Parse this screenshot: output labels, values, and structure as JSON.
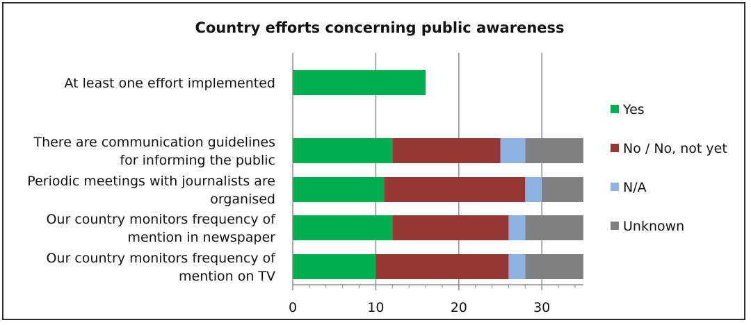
{
  "chart_data": {
    "type": "bar",
    "orientation": "horizontal",
    "stacked": true,
    "title": "Country efforts concerning public awareness",
    "xlabel": "",
    "ylabel": "",
    "xlim": [
      0,
      35
    ],
    "x_ticks": [
      0,
      10,
      20,
      30
    ],
    "grid": "vertical major gridlines",
    "legend_position": "right",
    "categories": [
      [
        "At least one effort implemented"
      ],
      [
        "There are communication guidelines",
        "for informing the public"
      ],
      [
        "Periodic meetings with journalists are",
        "organised"
      ],
      [
        "Our country monitors frequency of",
        "mention in newspaper"
      ],
      [
        "Our country monitors frequency of",
        "mention on TV"
      ]
    ],
    "series": [
      {
        "name": "Yes",
        "color": "#00b050",
        "values": [
          16,
          12,
          11,
          12,
          10
        ]
      },
      {
        "name": "No / No, not yet",
        "color": "#953735",
        "values": [
          0,
          13,
          17,
          14,
          16
        ]
      },
      {
        "name": "N/A",
        "color": "#8db3e2",
        "values": [
          0,
          3,
          2,
          2,
          2
        ]
      },
      {
        "name": "Unknown",
        "color": "#808080",
        "values": [
          0,
          7,
          5,
          7,
          7
        ]
      }
    ]
  }
}
